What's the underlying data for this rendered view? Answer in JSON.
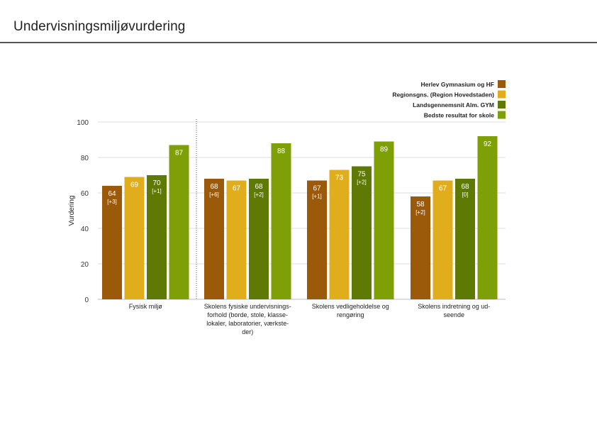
{
  "page": {
    "title": "Undervisningsmiljøvurdering"
  },
  "chart_data": {
    "type": "bar",
    "title": "",
    "xlabel": "",
    "ylabel": "Vurdering",
    "ylim": [
      0,
      100
    ],
    "yticks": [
      0,
      20,
      40,
      60,
      80,
      100
    ],
    "grid": true,
    "legend_position": "top-right",
    "categories": [
      "Fysisk miljø",
      "Skolens fysiske undervisnings-forhold (borde, stole, klasse-lokaler, laboratorier, værkste-der)",
      "Skolens vedligeholdelse og rengøring",
      "Skolens indretning og ud-seende"
    ],
    "category_label_lines": [
      [
        "Fysisk miljø"
      ],
      [
        "Skolens fysiske undervisnings-",
        "forhold (borde, stole, klasse-",
        "lokaler, laboratorier, værkste-",
        "der)"
      ],
      [
        "Skolens vedligeholdelse og",
        "rengøring"
      ],
      [
        "Skolens indretning og ud-",
        "seende"
      ]
    ],
    "series": [
      {
        "name": "Herlev Gymnasium og HF",
        "color": "#9b5a0a",
        "values": [
          64,
          68,
          67,
          58
        ],
        "diffs": [
          "[+3]",
          "[+6]",
          "[+1]",
          "[+2]"
        ]
      },
      {
        "name": "Regionsgns. (Region Hovedstaden)",
        "color": "#e0ae1c",
        "values": [
          69,
          67,
          73,
          67
        ],
        "diffs": [
          "",
          "",
          "",
          ""
        ]
      },
      {
        "name": "Landsgennemsnit Alm. GYM",
        "color": "#5e7a05",
        "values": [
          70,
          68,
          75,
          68
        ],
        "diffs": [
          "[+1]",
          "[+2]",
          "[+2]",
          "[0]"
        ]
      },
      {
        "name": "Bedste resultat for skole",
        "color": "#7e9f06",
        "values": [
          87,
          88,
          89,
          92
        ],
        "diffs": [
          "",
          "",
          "",
          ""
        ]
      }
    ]
  }
}
